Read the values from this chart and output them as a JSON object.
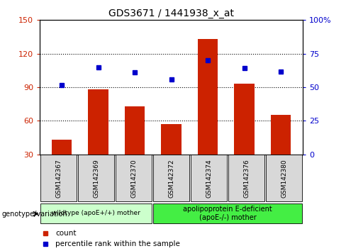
{
  "title": "GDS3671 / 1441938_x_at",
  "categories": [
    "GSM142367",
    "GSM142369",
    "GSM142370",
    "GSM142372",
    "GSM142374",
    "GSM142376",
    "GSM142380"
  ],
  "bar_values": [
    43,
    88,
    73,
    57,
    133,
    93,
    65
  ],
  "percentile_values": [
    92,
    108,
    103,
    97,
    114,
    107,
    104
  ],
  "bar_color": "#cc2200",
  "dot_color": "#0000cc",
  "ylim_left": [
    30,
    150
  ],
  "ylim_right": [
    0,
    100
  ],
  "yticks_left": [
    30,
    60,
    90,
    120,
    150
  ],
  "yticks_right": [
    0,
    25,
    50,
    75,
    100
  ],
  "ytick_labels_right": [
    "0",
    "25",
    "50",
    "75",
    "100%"
  ],
  "grid_values": [
    60,
    90,
    120
  ],
  "group1_label": "wildtype (apoE+/+) mother",
  "group2_label": "apolipoprotein E-deficient\n(apoE-/-) mother",
  "group1_color": "#ccffcc",
  "group2_color": "#44ee44",
  "xlabel_left": "genotype/variation",
  "legend_count": "count",
  "legend_percentile": "percentile rank within the sample",
  "sample_bg_color": "#d8d8d8"
}
